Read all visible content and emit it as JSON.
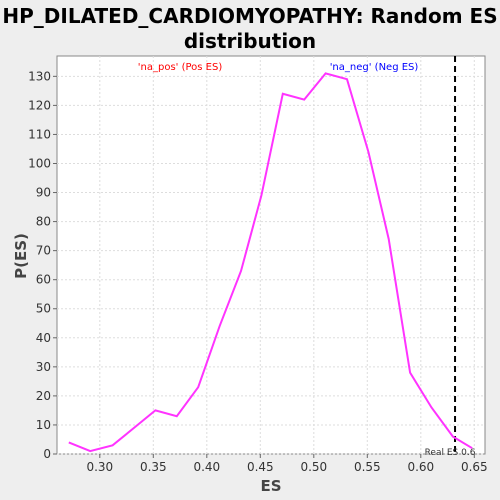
{
  "page": {
    "title_line1": "HP_DILATED_CARDIOMYOPATHY: Random ES",
    "title_line2": "distribution"
  },
  "chart_data": {
    "type": "line",
    "title": "HP_DILATED_CARDIOMYOPATHY: Random ES distribution",
    "xlabel": "ES",
    "ylabel": "P(ES)",
    "xlim": [
      0.26,
      0.66
    ],
    "ylim": [
      0,
      137
    ],
    "x_ticks": [
      "0.30",
      "0.35",
      "0.40",
      "0.45",
      "0.50",
      "0.55",
      "0.60",
      "0.65"
    ],
    "y_ticks": [
      "0",
      "10",
      "20",
      "30",
      "40",
      "50",
      "60",
      "70",
      "80",
      "90",
      "100",
      "110",
      "120",
      "130"
    ],
    "grid": true,
    "series": [
      {
        "color": "#ff33ff",
        "x": [
          0.271,
          0.291,
          0.312,
          0.332,
          0.352,
          0.372,
          0.392,
          0.412,
          0.432,
          0.451,
          0.471,
          0.491,
          0.511,
          0.531,
          0.551,
          0.57,
          0.59,
          0.61,
          0.63,
          0.648
        ],
        "y": [
          4,
          1,
          3,
          9,
          15,
          13,
          23,
          44,
          63,
          89,
          124,
          122,
          131,
          129,
          104,
          74,
          28,
          16,
          6,
          2
        ]
      }
    ],
    "annotations": {
      "pos_label": "'na_pos' (Pos ES)",
      "pos_color": "#ff0000",
      "neg_label": "'na_neg' (Neg ES)",
      "neg_color": "#0000ff",
      "real_es_label": "Real ES 0.6",
      "real_es_x": 0.632
    }
  }
}
